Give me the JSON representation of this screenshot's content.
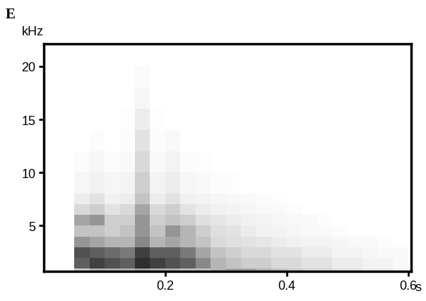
{
  "chart_data": {
    "type": "heatmap",
    "title": "E",
    "x_label": "s",
    "y_label": "kHz",
    "xlim": [
      0,
      0.605
    ],
    "xticks": [
      0.2,
      0.4,
      0.6
    ],
    "ylim": [
      0.7,
      22.1
    ],
    "yticks": [
      5,
      10,
      15,
      20
    ],
    "x_edges": [
      0.05,
      0.075,
      0.1,
      0.125,
      0.15,
      0.175,
      0.2,
      0.225,
      0.25,
      0.275,
      0.3,
      0.325,
      0.35,
      0.375,
      0.4,
      0.425,
      0.45,
      0.475,
      0.5,
      0.525,
      0.55,
      0.575,
      0.6
    ],
    "y_edges": [
      0,
      1,
      2,
      3,
      4,
      5,
      6,
      7,
      8,
      10,
      12,
      14,
      16,
      18,
      20
    ],
    "cell_range": [
      0,
      100
    ],
    "cells": [
      [
        30,
        40,
        40,
        40,
        45,
        40,
        40,
        35,
        35,
        40,
        45,
        45,
        40,
        35,
        30,
        25,
        25,
        20,
        20,
        15,
        15,
        10
      ],
      [
        70,
        80,
        75,
        70,
        85,
        80,
        75,
        70,
        55,
        40,
        35,
        30,
        30,
        25,
        25,
        20,
        20,
        15,
        15,
        10,
        10,
        5
      ],
      [
        75,
        70,
        65,
        60,
        80,
        70,
        70,
        60,
        45,
        35,
        30,
        25,
        25,
        20,
        20,
        15,
        15,
        10,
        10,
        8,
        5,
        5
      ],
      [
        50,
        45,
        40,
        40,
        55,
        40,
        45,
        40,
        35,
        25,
        22,
        20,
        18,
        15,
        12,
        10,
        10,
        8,
        5,
        5,
        3,
        0
      ],
      [
        35,
        35,
        30,
        35,
        50,
        35,
        50,
        40,
        30,
        22,
        20,
        15,
        12,
        10,
        8,
        6,
        5,
        3,
        0,
        0,
        0,
        0
      ],
      [
        45,
        50,
        30,
        30,
        50,
        30,
        35,
        30,
        22,
        18,
        15,
        12,
        10,
        8,
        6,
        5,
        3,
        0,
        0,
        0,
        0,
        0
      ],
      [
        25,
        30,
        20,
        25,
        45,
        25,
        30,
        20,
        15,
        12,
        10,
        8,
        6,
        5,
        3,
        0,
        0,
        0,
        0,
        0,
        0,
        0
      ],
      [
        15,
        20,
        12,
        15,
        35,
        15,
        20,
        12,
        10,
        8,
        6,
        5,
        3,
        2,
        0,
        0,
        0,
        0,
        0,
        0,
        0,
        0
      ],
      [
        8,
        12,
        8,
        10,
        30,
        10,
        15,
        8,
        5,
        3,
        2,
        0,
        0,
        0,
        0,
        0,
        0,
        0,
        0,
        0,
        0,
        0
      ],
      [
        3,
        8,
        3,
        5,
        25,
        5,
        10,
        3,
        2,
        0,
        0,
        0,
        0,
        0,
        0,
        0,
        0,
        0,
        0,
        0,
        0,
        0
      ],
      [
        0,
        3,
        0,
        3,
        20,
        3,
        5,
        0,
        0,
        0,
        0,
        0,
        0,
        0,
        0,
        0,
        0,
        0,
        0,
        0,
        0,
        0
      ],
      [
        0,
        0,
        0,
        2,
        15,
        2,
        0,
        0,
        0,
        0,
        0,
        0,
        0,
        0,
        0,
        0,
        0,
        0,
        0,
        0,
        0,
        0
      ],
      [
        0,
        0,
        0,
        0,
        8,
        0,
        0,
        0,
        0,
        0,
        0,
        0,
        0,
        0,
        0,
        0,
        0,
        0,
        0,
        0,
        0,
        0
      ],
      [
        0,
        0,
        0,
        0,
        4,
        0,
        0,
        0,
        0,
        0,
        0,
        0,
        0,
        0,
        0,
        0,
        0,
        0,
        0,
        0,
        0,
        0
      ]
    ]
  }
}
